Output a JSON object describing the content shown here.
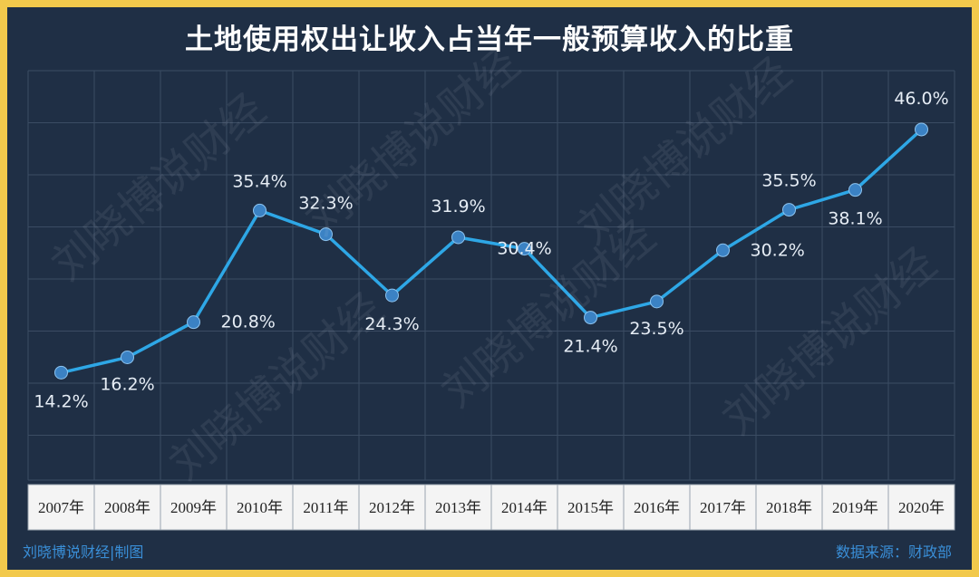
{
  "chart_data": {
    "type": "line",
    "title": "土地使用权出让收入占当年一般预算收入的比重",
    "categories": [
      "2007年",
      "2008年",
      "2009年",
      "2010年",
      "2011年",
      "2012年",
      "2013年",
      "2014年",
      "2015年",
      "2016年",
      "2017年",
      "2018年",
      "2019年",
      "2020年"
    ],
    "values": [
      14.2,
      16.2,
      20.8,
      35.4,
      32.3,
      24.3,
      31.9,
      30.4,
      21.4,
      23.5,
      30.2,
      35.5,
      38.1,
      46.0
    ],
    "labels": [
      "14.2%",
      "16.2%",
      "20.8%",
      "35.4%",
      "32.3%",
      "24.3%",
      "31.9%",
      "30.4%",
      "21.4%",
      "23.5%",
      "30.2%",
      "35.5%",
      "38.1%",
      "46.0%"
    ],
    "xlabel": "",
    "ylabel": "",
    "grid": true,
    "legend": "none",
    "colors": {
      "line": "#2ea7e6",
      "marker": "#3b82c4",
      "label": "#e6edf5",
      "grid": "#3b4c63",
      "background": "#1f2f45",
      "border": "#f2c94c"
    }
  },
  "footer": {
    "credit": "刘晓博说财经|制图",
    "source": "数据来源：财政部"
  },
  "watermark": "刘晓博说财经"
}
